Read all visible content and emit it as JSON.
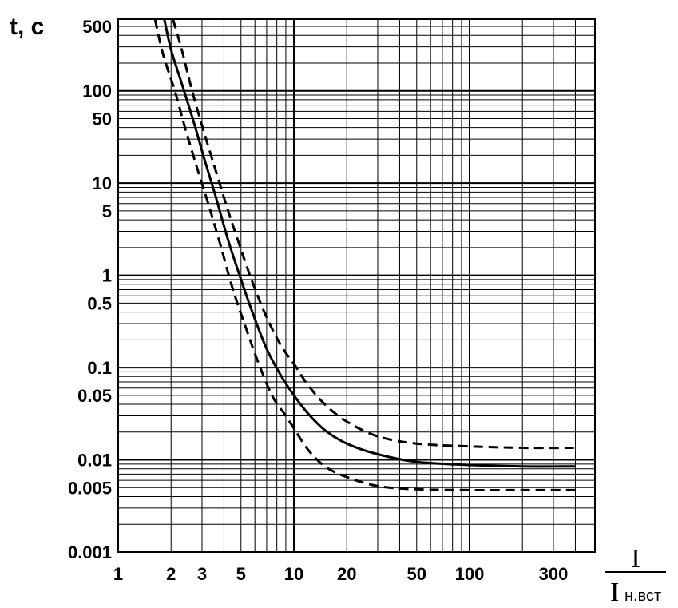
{
  "chart_data": {
    "type": "line",
    "title": "",
    "ylabel": "t, c",
    "xlabel": {
      "numerator": "I",
      "denominator": "I",
      "denominator_sub": "н.вст"
    },
    "xscale": "log",
    "yscale": "log",
    "xlim": [
      1,
      450
    ],
    "ylim": [
      0.001,
      600
    ],
    "grid": true,
    "xticks": [
      {
        "value": 1,
        "label": "1"
      },
      {
        "value": 2,
        "label": "2"
      },
      {
        "value": 3,
        "label": "3"
      },
      {
        "value": 5,
        "label": "5"
      },
      {
        "value": 10,
        "label": "10"
      },
      {
        "value": 20,
        "label": "20"
      },
      {
        "value": 50,
        "label": "50"
      },
      {
        "value": 100,
        "label": "100"
      },
      {
        "value": 300,
        "label": "300"
      }
    ],
    "yticks": [
      {
        "value": 500,
        "label": "500"
      },
      {
        "value": 100,
        "label": "100"
      },
      {
        "value": 50,
        "label": "50"
      },
      {
        "value": 10,
        "label": "10"
      },
      {
        "value": 5,
        "label": "5"
      },
      {
        "value": 1,
        "label": "1"
      },
      {
        "value": 0.5,
        "label": "0.5"
      },
      {
        "value": 0.1,
        "label": "0.1"
      },
      {
        "value": 0.05,
        "label": "0.05"
      },
      {
        "value": 0.01,
        "label": "0.01"
      },
      {
        "value": 0.005,
        "label": "0.005"
      },
      {
        "value": 0.001,
        "label": "0.001"
      }
    ],
    "series": [
      {
        "style": "solid",
        "x": [
          1.83,
          2.0,
          2.3,
          2.7,
          3.1,
          3.6,
          4.2,
          5.0,
          5.8,
          7.0,
          8.5,
          10,
          12,
          15,
          20,
          30,
          50,
          100,
          200,
          400
        ],
        "y": [
          600,
          280,
          120,
          45,
          18,
          7,
          2.5,
          0.9,
          0.4,
          0.16,
          0.08,
          0.05,
          0.032,
          0.021,
          0.015,
          0.0115,
          0.0095,
          0.0088,
          0.0085,
          0.0085
        ]
      },
      {
        "style": "dashed",
        "x": [
          1.62,
          1.8,
          2.1,
          2.4,
          2.8,
          3.3,
          3.8,
          4.5,
          5.3,
          6.2,
          7.5,
          9.0,
          10,
          12,
          15,
          20,
          30,
          50,
          100,
          200,
          400
        ],
        "y": [
          600,
          250,
          100,
          40,
          15,
          5.5,
          2.2,
          0.7,
          0.28,
          0.12,
          0.05,
          0.03,
          0.022,
          0.013,
          0.0085,
          0.0065,
          0.0052,
          0.0048,
          0.0047,
          0.0047,
          0.0047
        ]
      },
      {
        "style": "dashed",
        "x": [
          2.05,
          2.3,
          2.6,
          3.0,
          3.5,
          4.1,
          4.8,
          5.8,
          7.0,
          8.5,
          10,
          12,
          15,
          20,
          30,
          50,
          100,
          200,
          400
        ],
        "y": [
          600,
          280,
          110,
          42,
          16,
          6,
          2.4,
          0.85,
          0.35,
          0.17,
          0.11,
          0.065,
          0.04,
          0.026,
          0.018,
          0.015,
          0.014,
          0.0135,
          0.0135
        ]
      }
    ]
  }
}
